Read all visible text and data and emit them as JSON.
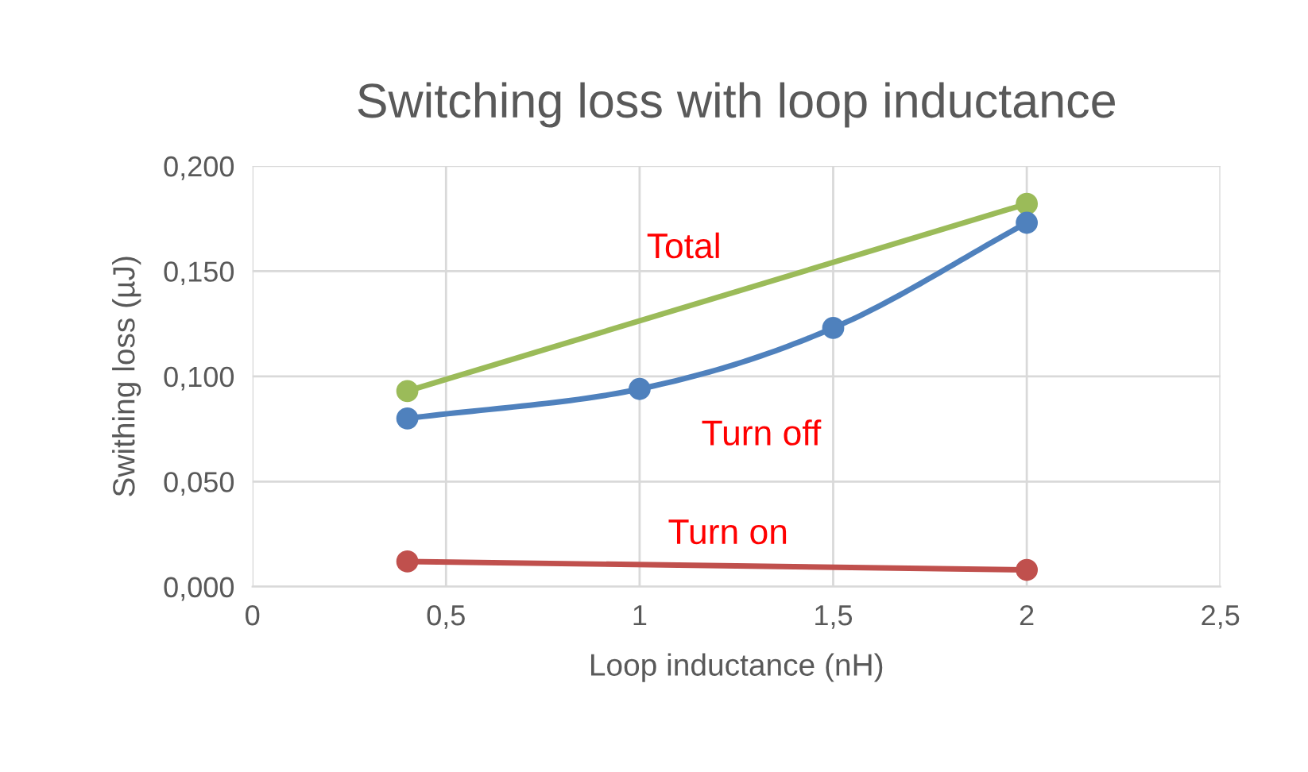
{
  "chart_data": {
    "type": "line",
    "title": "Switching loss with loop inductance",
    "xlabel": "Loop inductance (nH)",
    "ylabel": "Swithing loss (µJ)",
    "series": [
      {
        "name": "Total",
        "color": "#9bbb59",
        "x": [
          0.4,
          2
        ],
        "values": [
          0.093,
          0.182
        ]
      },
      {
        "name": "Turn off",
        "color": "#4f81bd",
        "x": [
          0.4,
          1,
          1.5,
          2
        ],
        "values": [
          0.08,
          0.094,
          0.123,
          0.173
        ]
      },
      {
        "name": "Turn on",
        "color": "#c0504d",
        "x": [
          0.4,
          2
        ],
        "values": [
          0.012,
          0.008
        ]
      }
    ],
    "xlim": [
      0,
      2.5
    ],
    "xticks": [
      0,
      {
        "value": 0.5,
        "label": "0,5"
      },
      1,
      {
        "value": 1.5,
        "label": "1,5"
      },
      2,
      {
        "value": 2.5,
        "label": "2,5"
      }
    ],
    "ylim": [
      0,
      0.2
    ],
    "yticks": [
      {
        "value": 0,
        "label": "0,000"
      },
      {
        "value": 0.05,
        "label": "0,050"
      },
      {
        "value": 0.1,
        "label": "0,100"
      },
      {
        "value": 0.15,
        "label": "0,150"
      },
      {
        "value": 0.2,
        "label": "0,200"
      }
    ],
    "grid": true,
    "marker": "circle",
    "line_style": "solid"
  }
}
